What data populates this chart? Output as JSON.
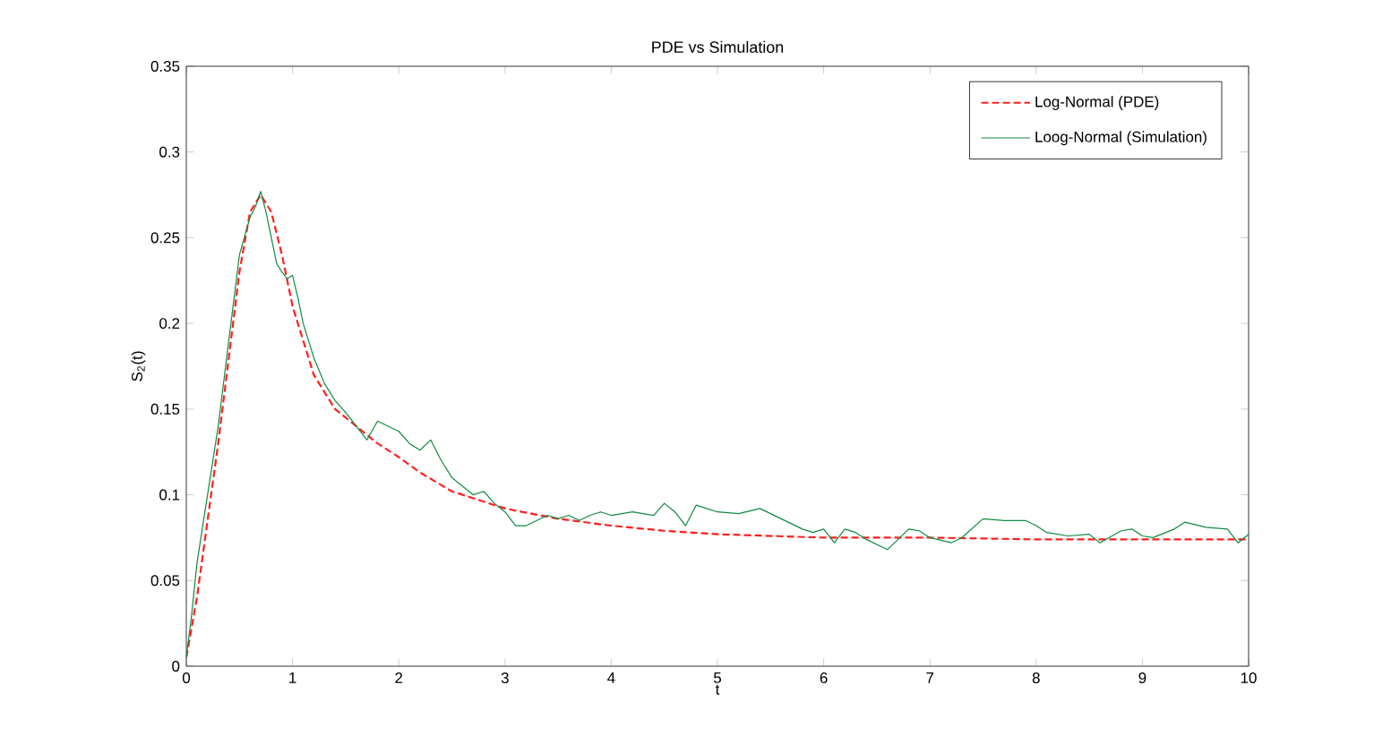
{
  "chart_data": {
    "type": "line",
    "title": "PDE vs Simulation",
    "xlabel": "t",
    "ylabel": "S$_{2}$(t)",
    "xlim": [
      0,
      10
    ],
    "ylim": [
      0,
      0.35
    ],
    "xticks": [
      0,
      1,
      2,
      3,
      4,
      5,
      6,
      7,
      8,
      9,
      10
    ],
    "yticks": [
      0,
      0.05,
      0.1,
      0.15,
      0.2,
      0.25,
      0.3,
      0.35
    ],
    "grid": false,
    "legend": "top right",
    "marker": "none",
    "series": [
      {
        "name": "Log-Normal (PDE)",
        "color": "#ff2020",
        "line_style": "dashed",
        "x": [
          0,
          0.1,
          0.2,
          0.3,
          0.4,
          0.5,
          0.6,
          0.7,
          0.8,
          0.9,
          1.0,
          1.2,
          1.4,
          1.6,
          1.8,
          2.0,
          2.2,
          2.5,
          3.0,
          3.5,
          4.0,
          4.5,
          5.0,
          6.0,
          7.0,
          8.0,
          9.0,
          10.0
        ],
        "values": [
          0.005,
          0.04,
          0.085,
          0.13,
          0.18,
          0.23,
          0.265,
          0.275,
          0.265,
          0.24,
          0.21,
          0.17,
          0.15,
          0.14,
          0.13,
          0.122,
          0.113,
          0.102,
          0.092,
          0.086,
          0.082,
          0.079,
          0.077,
          0.075,
          0.075,
          0.074,
          0.074,
          0.074
        ]
      },
      {
        "name": "Loog-Normal (Simulation)",
        "color": "#108a40",
        "line_style": "solid",
        "x": [
          0,
          0.05,
          0.1,
          0.15,
          0.2,
          0.3,
          0.4,
          0.5,
          0.6,
          0.65,
          0.7,
          0.75,
          0.8,
          0.85,
          0.9,
          0.95,
          1.0,
          1.05,
          1.1,
          1.2,
          1.3,
          1.4,
          1.5,
          1.6,
          1.7,
          1.8,
          1.9,
          2.0,
          2.1,
          2.2,
          2.3,
          2.4,
          2.5,
          2.6,
          2.7,
          2.8,
          2.9,
          3.0,
          3.1,
          3.2,
          3.3,
          3.4,
          3.5,
          3.6,
          3.7,
          3.8,
          3.9,
          4.0,
          4.2,
          4.4,
          4.5,
          4.6,
          4.7,
          4.8,
          5.0,
          5.2,
          5.4,
          5.6,
          5.8,
          5.9,
          6.0,
          6.1,
          6.2,
          6.3,
          6.4,
          6.6,
          6.8,
          6.9,
          7.0,
          7.2,
          7.3,
          7.5,
          7.7,
          7.9,
          8.0,
          8.1,
          8.3,
          8.5,
          8.6,
          8.8,
          8.9,
          9.0,
          9.1,
          9.3,
          9.4,
          9.6,
          9.8,
          9.9,
          10.0
        ],
        "values": [
          0.005,
          0.03,
          0.06,
          0.08,
          0.1,
          0.14,
          0.19,
          0.24,
          0.262,
          0.268,
          0.277,
          0.265,
          0.25,
          0.235,
          0.23,
          0.226,
          0.228,
          0.215,
          0.2,
          0.18,
          0.165,
          0.155,
          0.148,
          0.14,
          0.132,
          0.143,
          0.14,
          0.137,
          0.13,
          0.126,
          0.132,
          0.12,
          0.11,
          0.105,
          0.1,
          0.102,
          0.095,
          0.09,
          0.082,
          0.082,
          0.085,
          0.088,
          0.086,
          0.088,
          0.085,
          0.088,
          0.09,
          0.088,
          0.09,
          0.088,
          0.095,
          0.09,
          0.082,
          0.094,
          0.09,
          0.089,
          0.092,
          0.086,
          0.08,
          0.078,
          0.08,
          0.072,
          0.08,
          0.078,
          0.074,
          0.068,
          0.08,
          0.079,
          0.075,
          0.072,
          0.075,
          0.086,
          0.085,
          0.085,
          0.082,
          0.078,
          0.076,
          0.077,
          0.072,
          0.079,
          0.08,
          0.076,
          0.075,
          0.08,
          0.084,
          0.081,
          0.08,
          0.072,
          0.077
        ]
      }
    ]
  }
}
